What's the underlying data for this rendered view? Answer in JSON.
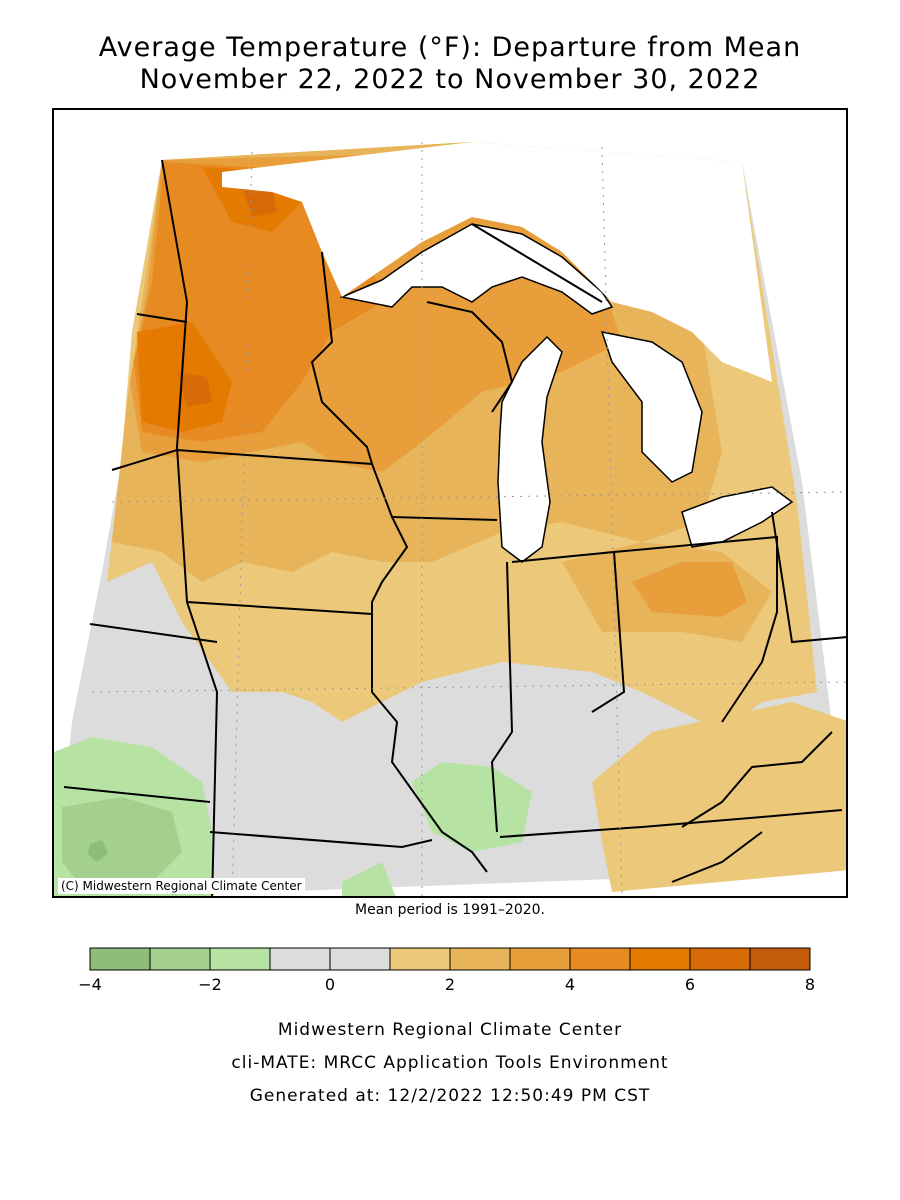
{
  "title": {
    "line1": "Average Temperature (°F): Departure from Mean",
    "line2": "November 22, 2022 to November 30, 2022"
  },
  "map": {
    "copyright": "(C) Midwestern Regional Climate Center",
    "colors": {
      "below_3_to_4": "#8dbd77",
      "below_2_to_3": "#a3d08d",
      "below_1_to_2": "#b6e3a3",
      "near_normal": "#dcdcdc",
      "above_1_to_2": "#ebc87a",
      "above_2_to_3": "#e8b45a",
      "above_3_to_4": "#e89f3b",
      "above_4_to_5": "#e88a22",
      "above_5_to_6": "#e57a00",
      "above_6_to_7": "#d86b08",
      "above_7_to_8": "#c45a0b",
      "lakes": "#ffffff",
      "borders": "#000000"
    }
  },
  "mean_period": "Mean period is 1991–2020.",
  "legend": {
    "colors": [
      "#8dbd77",
      "#a3d08d",
      "#b6e3a3",
      "#dcdcdc",
      "#dcdcdc",
      "#ebc87a",
      "#e8b45a",
      "#e89f3b",
      "#e88a22",
      "#e57a00",
      "#d86b08",
      "#c45a0b"
    ],
    "tick_labels": [
      "−4",
      "−2",
      "0",
      "2",
      "4",
      "6",
      "8"
    ],
    "tick_values": [
      -4,
      -2,
      0,
      2,
      4,
      6,
      8
    ],
    "min": -4,
    "max": 8
  },
  "footer": {
    "line1": "Midwestern Regional Climate Center",
    "line2": "cli-MATE: MRCC Application Tools Environment",
    "line3": "Generated at: 12/2/2022 12:50:49 PM CST"
  }
}
